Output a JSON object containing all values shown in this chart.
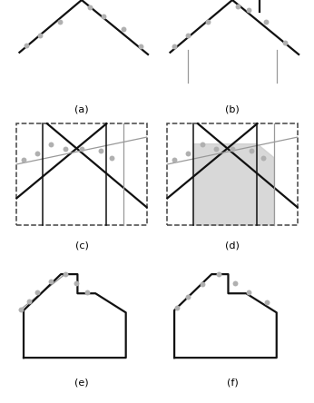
{
  "fig_width": 3.46,
  "fig_height": 4.44,
  "dpi": 100,
  "background": "#ffffff",
  "label_fontsize": 8,
  "gray_dot_color": "#b0b0b0",
  "gray_dot_size": 18,
  "line_color_black": "#111111",
  "line_color_gray": "#999999",
  "dashed_box_color": "#444444",
  "fill_color": "#cccccc",
  "labels": [
    "(a)",
    "(b)",
    "(c)",
    "(d)",
    "(e)",
    "(f)"
  ]
}
